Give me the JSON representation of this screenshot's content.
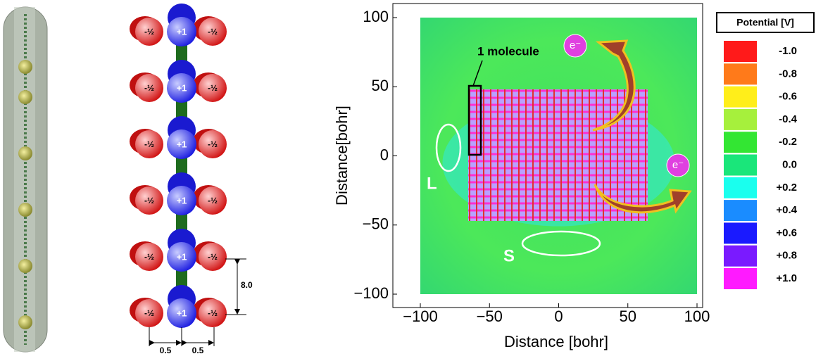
{
  "diagram": {
    "charges": [
      "-½",
      "+1",
      "-½"
    ],
    "spacing": "8.0",
    "offset": "0.5"
  },
  "chart_data": {
    "type": "heatmap",
    "xlabel": "Distance [bohr]",
    "ylabel": "Distance[bohr]",
    "xlim": [
      -100,
      100
    ],
    "ylim": [
      -100,
      100
    ],
    "xticks": [
      {
        "value": -100,
        "label": "−100"
      },
      {
        "value": -50,
        "label": "−50"
      },
      0,
      50,
      100
    ],
    "yticks": [
      {
        "value": -100,
        "label": "−100"
      },
      {
        "value": -50,
        "label": "−50"
      },
      0,
      50,
      100
    ],
    "annotations": {
      "molecule": "1 molecule",
      "long_edge": "L",
      "short_edge": "S",
      "electron": "e⁻"
    },
    "colorbar": {
      "title": "Potential [V]",
      "ticks": [
        {
          "value": -1.0,
          "label": "-1.0"
        },
        {
          "value": -0.8,
          "label": "-0.8"
        },
        {
          "value": -0.6,
          "label": "-0.6"
        },
        {
          "value": -0.4,
          "label": "-0.4"
        },
        {
          "value": -0.2,
          "label": "-0.2"
        },
        {
          "value": 0.0,
          "label": "0.0"
        },
        {
          "value": 0.2,
          "label": "+0.2"
        },
        {
          "value": 0.4,
          "label": "+0.4"
        },
        {
          "value": 0.6,
          "label": "+0.6"
        },
        {
          "value": 0.8,
          "label": "+0.8"
        },
        {
          "value": 1.0,
          "label": "+1.0"
        }
      ],
      "colors": [
        "#ff1a1a",
        "#ff7a1a",
        "#ffee1a",
        "#a6f03c",
        "#33e633",
        "#1ae67a",
        "#1affee",
        "#1a8cff",
        "#1a1aff",
        "#7a1aff",
        "#ff1aff"
      ]
    }
  }
}
